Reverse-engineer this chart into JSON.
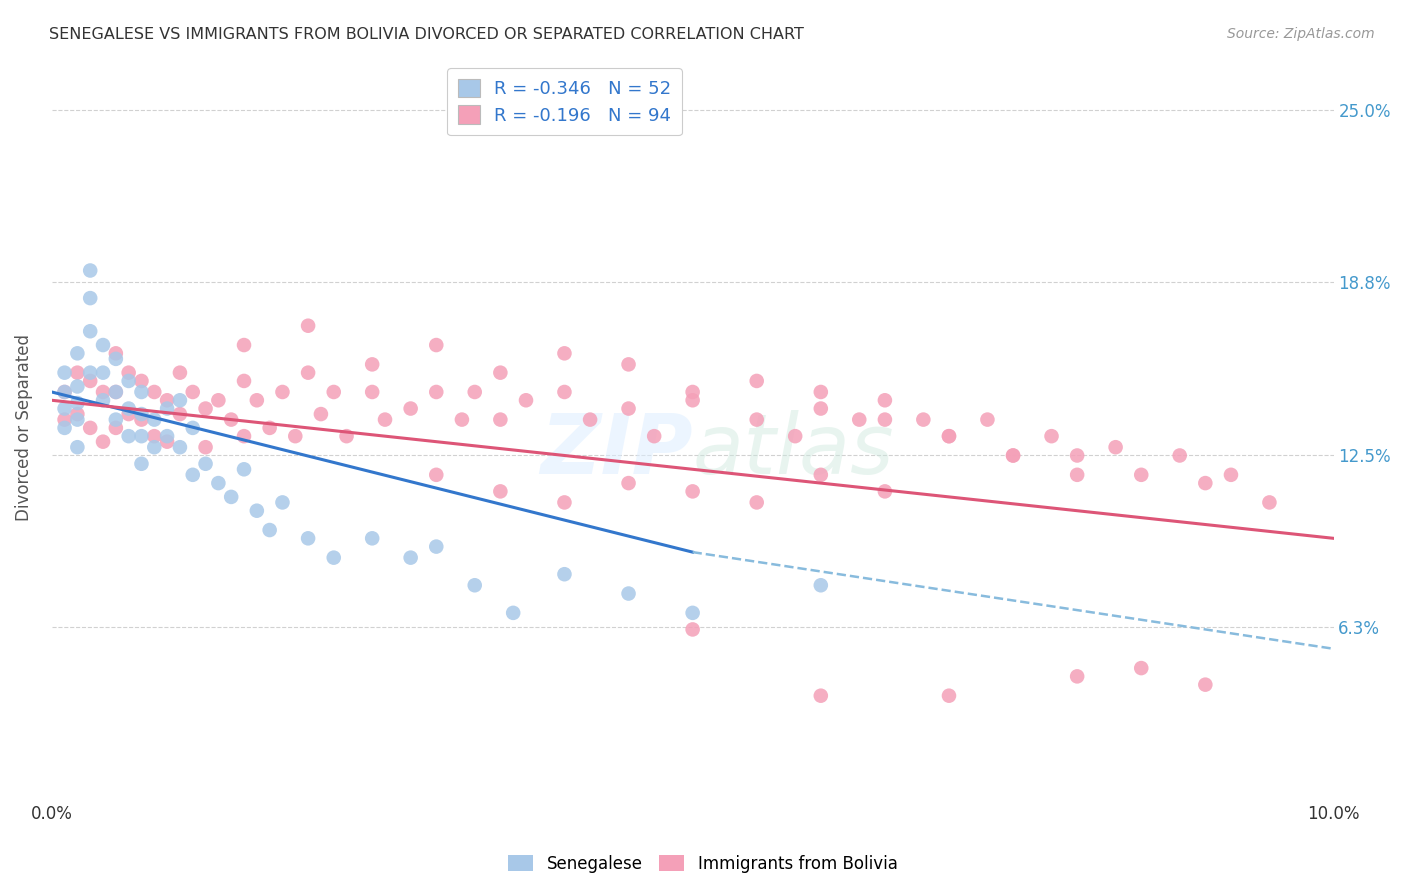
{
  "title": "SENEGALESE VS IMMIGRANTS FROM BOLIVIA DIVORCED OR SEPARATED CORRELATION CHART",
  "source": "Source: ZipAtlas.com",
  "ylabel": "Divorced or Separated",
  "ytick_labels": [
    "6.3%",
    "12.5%",
    "18.8%",
    "25.0%"
  ],
  "ytick_values": [
    0.063,
    0.125,
    0.188,
    0.25
  ],
  "xlim": [
    0.0,
    0.1
  ],
  "ylim": [
    0.0,
    0.27
  ],
  "background_color": "#ffffff",
  "grid_color": "#cccccc",
  "legend_R1": "R = -0.346",
  "legend_N1": "N = 52",
  "legend_R2": "R = -0.196",
  "legend_N2": "N = 94",
  "color_blue": "#a8c8e8",
  "color_pink": "#f4a0b8",
  "color_blue_line": "#3377cc",
  "color_pink_line": "#dd5577",
  "color_dashed": "#88bbdd",
  "senegalese_x": [
    0.001,
    0.001,
    0.001,
    0.001,
    0.002,
    0.002,
    0.002,
    0.002,
    0.002,
    0.003,
    0.003,
    0.003,
    0.003,
    0.004,
    0.004,
    0.004,
    0.005,
    0.005,
    0.005,
    0.006,
    0.006,
    0.006,
    0.007,
    0.007,
    0.007,
    0.007,
    0.008,
    0.008,
    0.009,
    0.009,
    0.01,
    0.01,
    0.011,
    0.011,
    0.012,
    0.013,
    0.014,
    0.015,
    0.016,
    0.017,
    0.018,
    0.02,
    0.022,
    0.025,
    0.028,
    0.03,
    0.033,
    0.036,
    0.04,
    0.045,
    0.05,
    0.06
  ],
  "senegalese_y": [
    0.155,
    0.148,
    0.142,
    0.135,
    0.162,
    0.15,
    0.144,
    0.138,
    0.128,
    0.192,
    0.182,
    0.17,
    0.155,
    0.165,
    0.155,
    0.145,
    0.16,
    0.148,
    0.138,
    0.152,
    0.142,
    0.132,
    0.148,
    0.14,
    0.132,
    0.122,
    0.138,
    0.128,
    0.142,
    0.132,
    0.145,
    0.128,
    0.135,
    0.118,
    0.122,
    0.115,
    0.11,
    0.12,
    0.105,
    0.098,
    0.108,
    0.095,
    0.088,
    0.095,
    0.088,
    0.092,
    0.078,
    0.068,
    0.082,
    0.075,
    0.068,
    0.078
  ],
  "bolivia_x": [
    0.001,
    0.001,
    0.002,
    0.002,
    0.003,
    0.003,
    0.004,
    0.004,
    0.005,
    0.005,
    0.005,
    0.006,
    0.006,
    0.007,
    0.007,
    0.008,
    0.008,
    0.009,
    0.009,
    0.01,
    0.01,
    0.011,
    0.012,
    0.012,
    0.013,
    0.014,
    0.015,
    0.015,
    0.016,
    0.017,
    0.018,
    0.019,
    0.02,
    0.021,
    0.022,
    0.023,
    0.025,
    0.026,
    0.028,
    0.03,
    0.032,
    0.033,
    0.035,
    0.037,
    0.04,
    0.042,
    0.045,
    0.047,
    0.05,
    0.055,
    0.058,
    0.06,
    0.063,
    0.065,
    0.068,
    0.07,
    0.073,
    0.075,
    0.078,
    0.08,
    0.083,
    0.085,
    0.088,
    0.09,
    0.092,
    0.095,
    0.03,
    0.035,
    0.04,
    0.045,
    0.05,
    0.055,
    0.06,
    0.065,
    0.015,
    0.02,
    0.025,
    0.03,
    0.035,
    0.04,
    0.045,
    0.05,
    0.055,
    0.06,
    0.065,
    0.07,
    0.075,
    0.08,
    0.085,
    0.09,
    0.05,
    0.06,
    0.07,
    0.08
  ],
  "bolivia_y": [
    0.148,
    0.138,
    0.155,
    0.14,
    0.152,
    0.135,
    0.148,
    0.13,
    0.162,
    0.148,
    0.135,
    0.155,
    0.14,
    0.152,
    0.138,
    0.148,
    0.132,
    0.145,
    0.13,
    0.155,
    0.14,
    0.148,
    0.142,
    0.128,
    0.145,
    0.138,
    0.152,
    0.132,
    0.145,
    0.135,
    0.148,
    0.132,
    0.155,
    0.14,
    0.148,
    0.132,
    0.148,
    0.138,
    0.142,
    0.148,
    0.138,
    0.148,
    0.138,
    0.145,
    0.148,
    0.138,
    0.142,
    0.132,
    0.145,
    0.138,
    0.132,
    0.148,
    0.138,
    0.145,
    0.138,
    0.132,
    0.138,
    0.125,
    0.132,
    0.125,
    0.128,
    0.118,
    0.125,
    0.115,
    0.118,
    0.108,
    0.118,
    0.112,
    0.108,
    0.115,
    0.112,
    0.108,
    0.118,
    0.112,
    0.165,
    0.172,
    0.158,
    0.165,
    0.155,
    0.162,
    0.158,
    0.148,
    0.152,
    0.142,
    0.138,
    0.132,
    0.125,
    0.118,
    0.048,
    0.042,
    0.062,
    0.038,
    0.038,
    0.045
  ],
  "sen_line_x": [
    0.0,
    0.05
  ],
  "sen_line_y": [
    0.148,
    0.09
  ],
  "bol_line_x": [
    0.0,
    0.1
  ],
  "bol_line_y": [
    0.145,
    0.095
  ],
  "dash_line_x": [
    0.05,
    0.1
  ],
  "dash_line_y": [
    0.09,
    0.055
  ]
}
